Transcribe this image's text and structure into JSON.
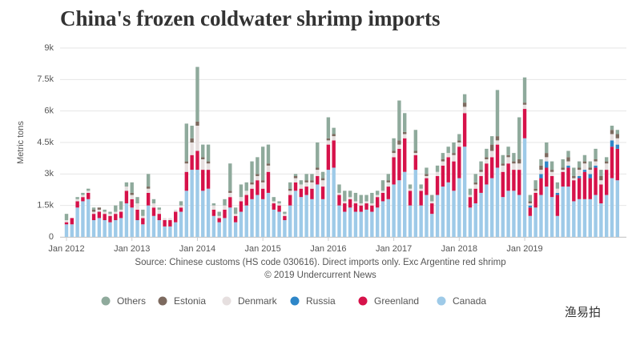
{
  "chart_data": {
    "type": "stacked_bar",
    "title": "China's frozen coldwater shrimp imports",
    "y_label": "Metric tons",
    "source": "Source: Chinese customs (HS code 030616). Direct imports only. Exc Argentine red shrimp",
    "copyright": "© 2019 Undercurrent News",
    "watermark": "渔易拍",
    "ylim": [
      0,
      9000
    ],
    "yticks": [
      0,
      {
        "value": 1500,
        "label": "1.5k"
      },
      {
        "value": 3000,
        "label": "3k"
      },
      {
        "value": 4500,
        "label": "4.5k"
      },
      {
        "value": 6000,
        "label": "6k"
      },
      {
        "value": 7500,
        "label": "7.5k"
      },
      {
        "value": 9000,
        "label": "9k"
      }
    ],
    "grid": true,
    "legend": "bottom",
    "categories": [
      "Jan 2012",
      null,
      null,
      null,
      null,
      null,
      null,
      null,
      null,
      null,
      null,
      null,
      "Jan 2013",
      null,
      null,
      null,
      null,
      null,
      null,
      null,
      null,
      null,
      null,
      null,
      "Jan 2014",
      null,
      null,
      null,
      null,
      null,
      null,
      null,
      null,
      null,
      null,
      null,
      "Jan 2015",
      null,
      null,
      null,
      null,
      null,
      null,
      null,
      null,
      null,
      null,
      null,
      "Jan 2016",
      null,
      null,
      null,
      null,
      null,
      null,
      null,
      null,
      null,
      null,
      null,
      "Jan 2017",
      null,
      null,
      null,
      null,
      null,
      null,
      null,
      null,
      null,
      null,
      null,
      "Jan 2018",
      null,
      null,
      null,
      null,
      null,
      null,
      null,
      null,
      null,
      null,
      null,
      "Jan 2019",
      null,
      null,
      null,
      null,
      null,
      null,
      null,
      null,
      null,
      null,
      null,
      null,
      null,
      null,
      null,
      null,
      null
    ],
    "series": [
      {
        "name": "Others",
        "color": "#8faa9c",
        "values": [
          300,
          0,
          100,
          100,
          100,
          100,
          0,
          100,
          100,
          300,
          400,
          200,
          500,
          300,
          300,
          600,
          200,
          100,
          0,
          0,
          0,
          200,
          1800,
          600,
          2600,
          600,
          800,
          100,
          200,
          300,
          1300,
          300,
          600,
          400,
          1000,
          800,
          1600,
          900,
          200,
          100,
          100,
          300,
          100,
          200,
          300,
          300,
          1200,
          300,
          1000,
          300,
          400,
          500,
          300,
          400,
          400,
          300,
          500,
          200,
          500,
          300,
          600,
          1900,
          900,
          200,
          1000,
          200,
          300,
          300,
          300,
          300,
          300,
          500,
          300,
          400,
          300,
          400,
          400,
          400,
          400,
          2200,
          400,
          400,
          400,
          2000,
          1200,
          300,
          400,
          300,
          500,
          400,
          300,
          400,
          300,
          400,
          300,
          300,
          300,
          500,
          300,
          200,
          200,
          200
        ]
      },
      {
        "name": "Estonia",
        "color": "#7d6a5f",
        "values": [
          0,
          0,
          0,
          0,
          0,
          100,
          100,
          0,
          0,
          0,
          0,
          0,
          100,
          0,
          0,
          100,
          0,
          0,
          0,
          0,
          0,
          0,
          100,
          200,
          200,
          100,
          100,
          0,
          0,
          0,
          100,
          0,
          0,
          0,
          100,
          100,
          100,
          100,
          0,
          0,
          0,
          100,
          100,
          0,
          100,
          100,
          100,
          100,
          100,
          100,
          0,
          0,
          0,
          0,
          0,
          0,
          0,
          0,
          0,
          100,
          100,
          200,
          100,
          0,
          100,
          0,
          100,
          0,
          0,
          100,
          0,
          100,
          100,
          200,
          0,
          100,
          100,
          100,
          300,
          200,
          100,
          100,
          100,
          200,
          100,
          100,
          100,
          200,
          200,
          100,
          0,
          100,
          200,
          100,
          100,
          100,
          100,
          100,
          200,
          100,
          200,
          200
        ]
      },
      {
        "name": "Denmark",
        "color": "#e6dfdf",
        "values": [
          100,
          0,
          100,
          100,
          100,
          100,
          100,
          100,
          100,
          100,
          100,
          200,
          200,
          300,
          100,
          200,
          200,
          200,
          100,
          100,
          100,
          100,
          400,
          600,
          1200,
          500,
          300,
          200,
          100,
          200,
          200,
          100,
          200,
          200,
          200,
          200,
          300,
          300,
          100,
          100,
          100,
          200,
          200,
          200,
          200,
          300,
          300,
          300,
          200,
          200,
          100,
          100,
          100,
          100,
          100,
          100,
          100,
          100,
          100,
          200,
          200,
          200,
          200,
          100,
          100,
          100,
          100,
          100,
          200,
          200,
          200,
          300,
          200,
          300,
          100,
          200,
          200,
          200,
          300,
          200,
          300,
          300,
          300,
          300,
          200,
          100,
          100,
          200,
          200,
          200,
          200,
          100,
          200,
          100,
          300,
          300,
          200,
          200,
          200,
          300,
          300,
          300
        ]
      },
      {
        "name": "Russia",
        "color": "#2e86c8",
        "values": [
          0,
          0,
          0,
          0,
          0,
          0,
          0,
          0,
          0,
          0,
          0,
          0,
          0,
          0,
          0,
          0,
          0,
          0,
          0,
          0,
          0,
          0,
          0,
          0,
          0,
          0,
          0,
          0,
          0,
          0,
          0,
          0,
          0,
          0,
          0,
          0,
          0,
          0,
          0,
          0,
          0,
          0,
          0,
          0,
          0,
          0,
          0,
          0,
          0,
          0,
          0,
          0,
          0,
          0,
          0,
          0,
          0,
          0,
          0,
          0,
          0,
          0,
          0,
          0,
          0,
          0,
          0,
          0,
          0,
          0,
          0,
          0,
          0,
          0,
          0,
          0,
          0,
          0,
          0,
          0,
          0,
          0,
          0,
          0,
          0,
          100,
          0,
          200,
          300,
          0,
          100,
          0,
          100,
          0,
          100,
          100,
          200,
          100,
          0,
          0,
          300,
          200
        ]
      },
      {
        "name": "Greenland",
        "color": "#d6124a",
        "values": [
          100,
          300,
          300,
          200,
          300,
          300,
          300,
          300,
          300,
          300,
          300,
          600,
          400,
          500,
          300,
          600,
          400,
          300,
          300,
          300,
          500,
          200,
          900,
          700,
          900,
          1000,
          900,
          300,
          200,
          400,
          500,
          300,
          500,
          500,
          500,
          700,
          500,
          1000,
          300,
          300,
          200,
          500,
          400,
          400,
          400,
          500,
          400,
          600,
          1200,
          1300,
          500,
          400,
          400,
          400,
          300,
          300,
          300,
          500,
          400,
          600,
          1300,
          1500,
          1600,
          700,
          700,
          700,
          800,
          500,
          900,
          1000,
          1200,
          1400,
          1500,
          1600,
          500,
          700,
          800,
          1000,
          1000,
          1100,
          1200,
          1300,
          1000,
          1200,
          1400,
          400,
          700,
          800,
          900,
          1000,
          1000,
          700,
          900,
          1000,
          1000,
          1300,
          1000,
          1300,
          900,
          1200,
          1500,
          1500
        ]
      },
      {
        "name": "Canada",
        "color": "#9ecae8",
        "values": [
          600,
          600,
          1400,
          1700,
          1800,
          800,
          900,
          800,
          700,
          800,
          900,
          1600,
          1400,
          800,
          600,
          1500,
          1000,
          800,
          500,
          500,
          700,
          1200,
          2200,
          3200,
          3200,
          2200,
          2300,
          1000,
          700,
          900,
          1400,
          700,
          1200,
          1500,
          1800,
          2000,
          1800,
          2100,
          1300,
          1200,
          800,
          1500,
          2200,
          1900,
          2000,
          1800,
          2500,
          1800,
          3200,
          3300,
          1500,
          1200,
          1400,
          1200,
          1200,
          1300,
          1200,
          1400,
          1700,
          1800,
          2500,
          2700,
          3100,
          1500,
          3200,
          1500,
          2000,
          1100,
          2000,
          2400,
          2600,
          2200,
          2800,
          4300,
          1400,
          1600,
          2100,
          2500,
          2800,
          3300,
          1900,
          2200,
          2200,
          2000,
          4700,
          1000,
          1400,
          2000,
          2400,
          1900,
          1000,
          2400,
          2400,
          1700,
          1800,
          1800,
          1800,
          2000,
          1600,
          2000,
          2800,
          2700
        ]
      }
    ]
  }
}
